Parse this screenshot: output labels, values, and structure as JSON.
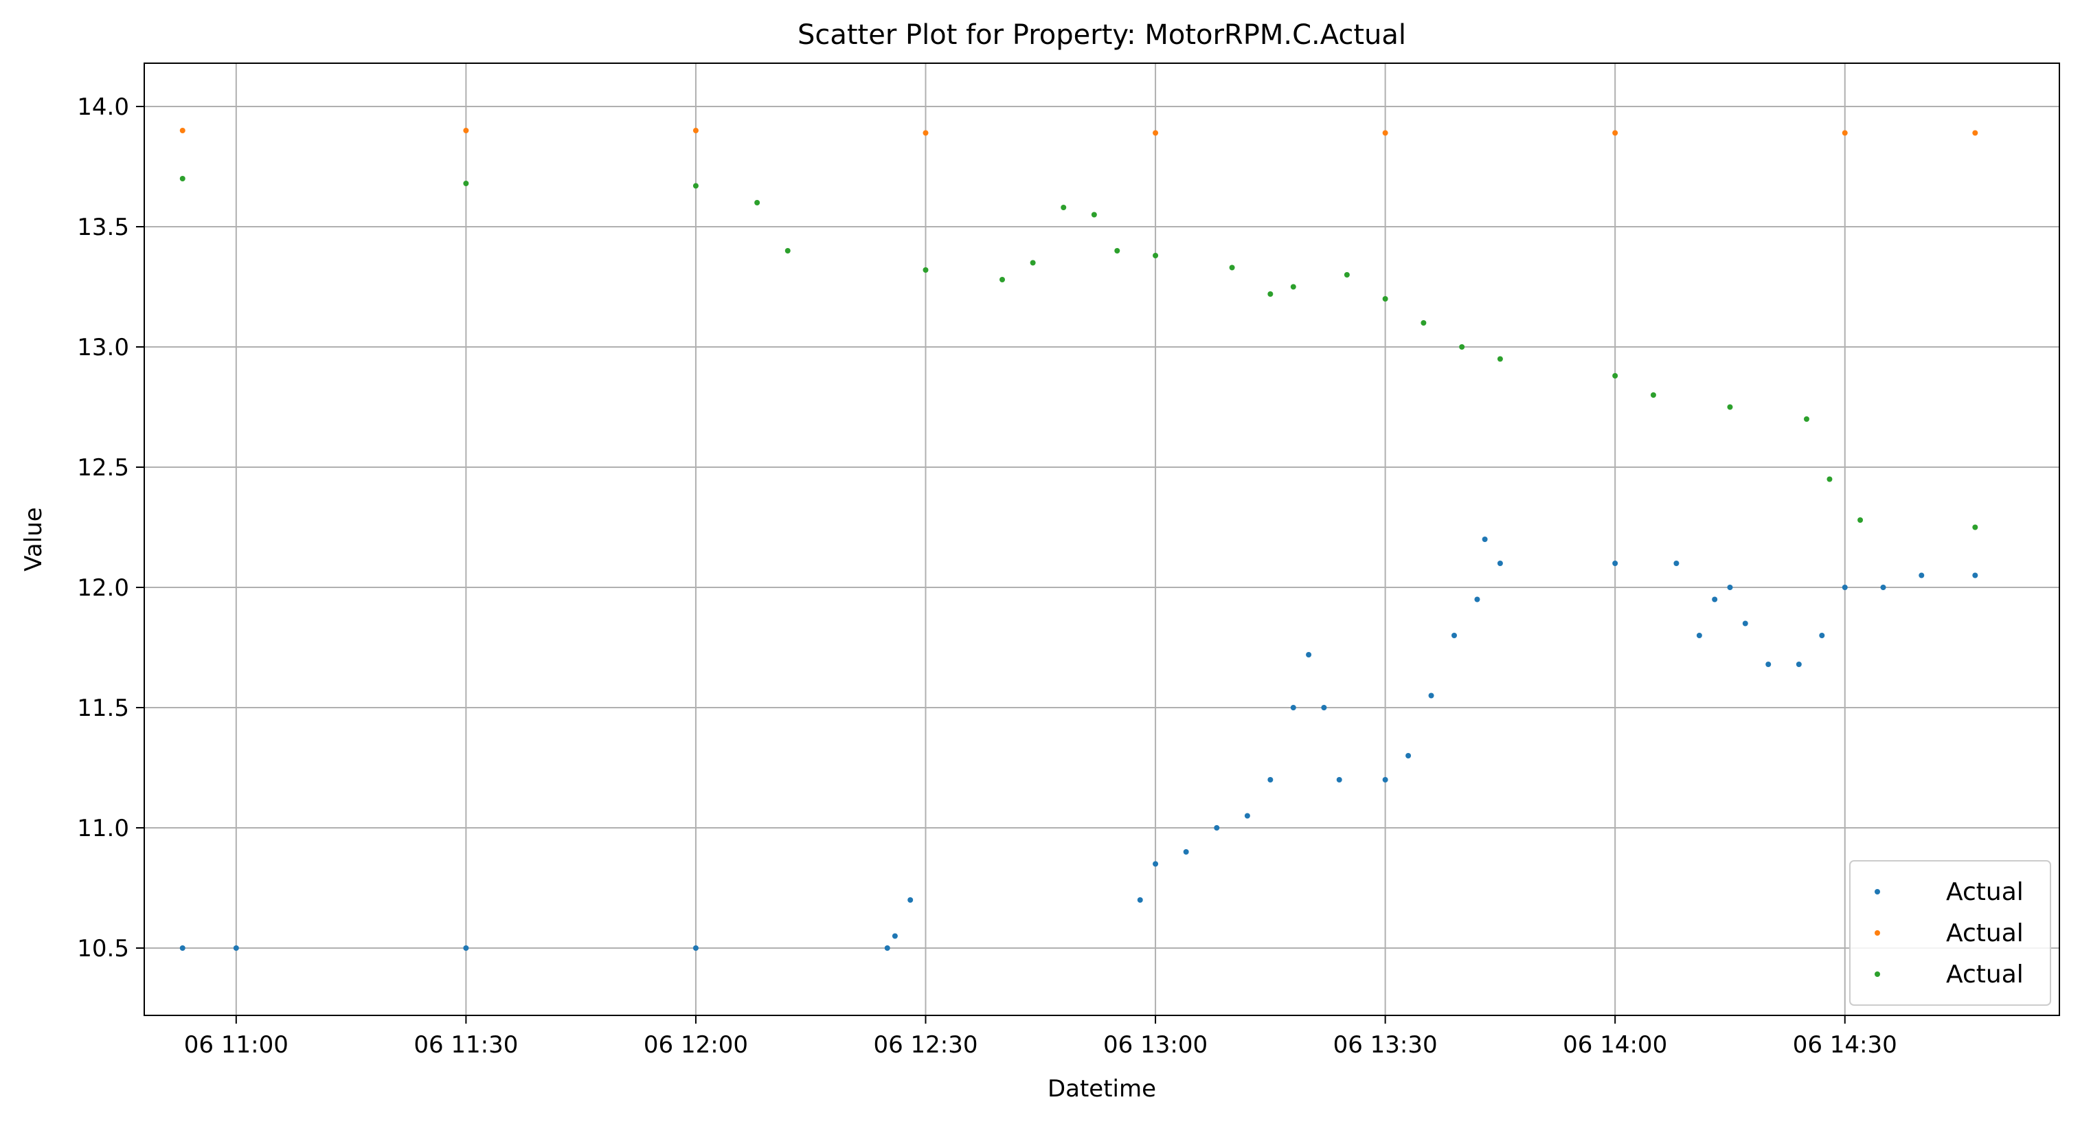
{
  "chart_data": {
    "type": "scatter",
    "title": "Scatter Plot for Property: MotorRPM.C.Actual",
    "xlabel": "Datetime",
    "ylabel": "Value",
    "x_ticks": [
      "06 11:00",
      "06 11:30",
      "06 12:00",
      "06 12:30",
      "06 13:00",
      "06 13:30",
      "06 14:00",
      "06 14:30"
    ],
    "y_ticks": [
      "10.5",
      "11.0",
      "11.5",
      "12.0",
      "12.5",
      "13.0",
      "13.5",
      "14.0"
    ],
    "xlim": [
      "06 10:48",
      "06 14:58"
    ],
    "ylim": [
      10.22,
      14.18
    ],
    "grid": true,
    "legend_position": "lower right",
    "colors": {
      "blue": "#1f77b4",
      "orange": "#ff7f0e",
      "green": "#2ca02c"
    },
    "series": [
      {
        "name": "Actual",
        "color": "#1f77b4",
        "x": [
          "06 10:53",
          "06 11:00",
          "06 11:30",
          "06 12:00",
          "06 12:25",
          "06 12:26",
          "06 12:28",
          "06 12:58",
          "06 13:00",
          "06 13:04",
          "06 13:08",
          "06 13:12",
          "06 13:15",
          "06 13:18",
          "06 13:20",
          "06 13:22",
          "06 13:24",
          "06 13:30",
          "06 13:33",
          "06 13:36",
          "06 13:39",
          "06 13:42",
          "06 13:43",
          "06 13:45",
          "06 14:00",
          "06 14:08",
          "06 14:11",
          "06 14:13",
          "06 14:15",
          "06 14:17",
          "06 14:20",
          "06 14:24",
          "06 14:27",
          "06 14:30",
          "06 14:35",
          "06 14:40",
          "06 14:47"
        ],
        "y": [
          10.5,
          10.5,
          10.5,
          10.5,
          10.5,
          10.55,
          10.7,
          10.7,
          10.85,
          10.9,
          11.0,
          11.05,
          11.2,
          11.5,
          11.72,
          11.5,
          11.2,
          11.2,
          11.3,
          11.55,
          11.8,
          11.95,
          12.2,
          12.1,
          12.1,
          12.1,
          11.8,
          11.95,
          12.0,
          11.85,
          11.68,
          11.68,
          11.8,
          12.0,
          12.0,
          12.05,
          12.05
        ]
      },
      {
        "name": "Actual",
        "color": "#ff7f0e",
        "x": [
          "06 10:53",
          "06 11:30",
          "06 12:00",
          "06 12:30",
          "06 13:00",
          "06 13:30",
          "06 14:00",
          "06 14:30",
          "06 14:47"
        ],
        "y": [
          13.9,
          13.9,
          13.9,
          13.89,
          13.89,
          13.89,
          13.89,
          13.89,
          13.89
        ]
      },
      {
        "name": "Actual",
        "color": "#2ca02c",
        "x": [
          "06 10:53",
          "06 11:30",
          "06 12:00",
          "06 12:08",
          "06 12:12",
          "06 12:30",
          "06 12:40",
          "06 12:44",
          "06 12:48",
          "06 12:52",
          "06 12:55",
          "06 13:00",
          "06 13:10",
          "06 13:15",
          "06 13:18",
          "06 13:25",
          "06 13:30",
          "06 13:35",
          "06 13:40",
          "06 13:45",
          "06 14:00",
          "06 14:05",
          "06 14:15",
          "06 14:25",
          "06 14:28",
          "06 14:32",
          "06 14:47"
        ],
        "y": [
          13.7,
          13.68,
          13.67,
          13.6,
          13.4,
          13.32,
          13.28,
          13.35,
          13.58,
          13.55,
          13.4,
          13.38,
          13.33,
          13.22,
          13.25,
          13.3,
          13.2,
          13.1,
          13.0,
          12.95,
          12.88,
          12.8,
          12.75,
          12.7,
          12.45,
          12.28,
          12.25
        ]
      }
    ]
  }
}
